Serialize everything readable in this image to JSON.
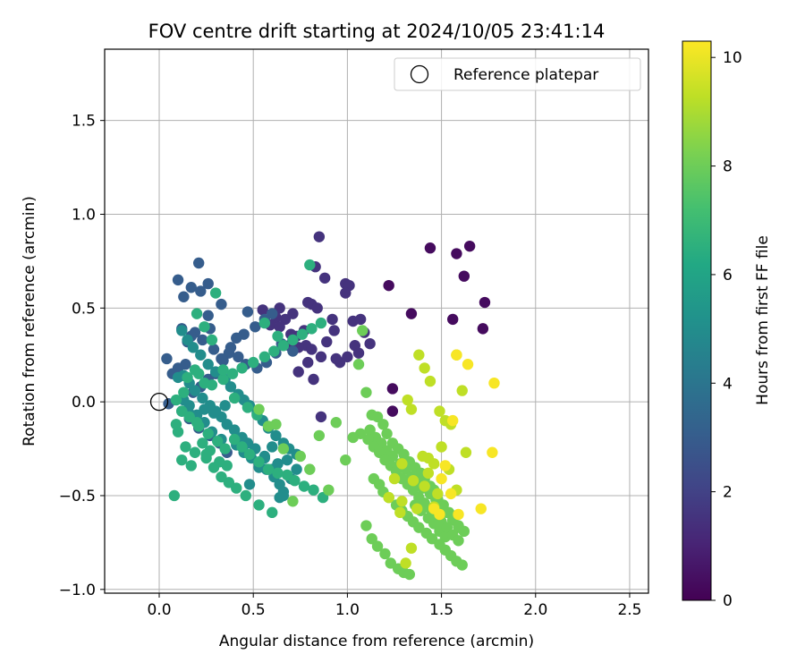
{
  "chart_data": {
    "type": "scatter",
    "title": "FOV centre drift starting at 2024/10/05 23:41:14",
    "xlabel": "Angular distance from reference (arcmin)",
    "ylabel": "Rotation from reference (arcmin)",
    "xlim": [
      -0.29,
      2.6
    ],
    "ylim": [
      -1.02,
      1.88
    ],
    "xticks": [
      0.0,
      0.5,
      1.0,
      1.5,
      2.0,
      2.5
    ],
    "xtick_labels": [
      "0.0",
      "0.5",
      "1.0",
      "1.5",
      "2.0",
      "2.5"
    ],
    "yticks": [
      -1.0,
      -0.5,
      0.0,
      0.5,
      1.0,
      1.5
    ],
    "ytick_labels": [
      "−1.0",
      "−0.5",
      "0.0",
      "0.5",
      "1.0",
      "1.5"
    ],
    "grid": true,
    "legend": {
      "placement": "top-right",
      "entries": [
        "Reference platepar"
      ]
    },
    "reference_point": {
      "x": 0.0,
      "y": 0.0,
      "marker": "open-circle"
    },
    "colorbar": {
      "label": "Hours from first FF file",
      "colormap": "viridis",
      "range": [
        0,
        10.3
      ],
      "ticks": [
        0,
        2,
        4,
        6,
        8,
        10
      ],
      "tick_labels": [
        "0",
        "2",
        "4",
        "6",
        "8",
        "10"
      ]
    },
    "series": [
      {
        "label_hours": 0.3,
        "x": [
          1.44,
          1.58,
          1.65,
          1.62,
          1.56,
          1.73,
          1.72,
          1.34,
          1.22,
          1.24,
          1.24
        ],
        "y": [
          0.82,
          0.79,
          0.83,
          0.67,
          0.44,
          0.53,
          0.39,
          0.47,
          0.62,
          0.07,
          -0.05
        ]
      },
      {
        "values_hours": 1.5,
        "x": [
          0.85,
          0.88,
          0.81,
          0.79,
          0.84,
          0.92,
          0.99,
          1.01,
          0.99,
          1.03,
          1.07,
          1.09,
          1.12,
          0.93,
          0.89,
          0.96,
          0.86,
          0.78,
          0.81,
          0.73,
          0.77,
          0.74,
          0.7,
          0.67,
          0.71,
          0.64,
          0.62,
          0.55,
          0.59,
          0.64,
          0.69,
          0.74,
          0.82,
          0.79,
          0.86,
          1.04,
          1.06,
          0.94,
          1.0,
          0.83
        ],
        "y": [
          0.88,
          0.66,
          0.52,
          0.53,
          0.5,
          0.44,
          0.63,
          0.62,
          0.58,
          0.43,
          0.44,
          0.37,
          0.31,
          0.38,
          0.32,
          0.21,
          0.24,
          0.3,
          0.28,
          0.35,
          0.38,
          0.29,
          0.36,
          0.44,
          0.47,
          0.5,
          0.45,
          0.49,
          0.41,
          0.4,
          0.3,
          0.16,
          0.12,
          0.21,
          -0.08,
          0.3,
          0.26,
          0.23,
          0.24,
          0.72
        ]
      },
      {
        "values_hours": 3.0,
        "x": [
          0.1,
          0.13,
          0.17,
          0.22,
          0.26,
          0.21,
          0.26,
          0.33,
          0.27,
          0.19,
          0.12,
          0.17,
          0.15,
          0.23,
          0.29,
          0.33,
          0.37,
          0.42,
          0.46,
          0.52,
          0.57,
          0.62,
          0.65,
          0.71,
          0.6,
          0.56,
          0.51,
          0.47,
          0.45,
          0.41,
          0.38,
          0.34,
          0.3,
          0.26,
          0.22,
          0.18,
          0.14,
          0.1,
          0.07,
          0.04,
          0.05,
          0.12,
          0.16,
          0.21,
          0.27,
          0.32,
          0.36
        ],
        "y": [
          0.65,
          0.56,
          0.61,
          0.59,
          0.63,
          0.74,
          0.46,
          0.52,
          0.39,
          0.37,
          0.39,
          0.35,
          0.32,
          0.33,
          0.28,
          0.23,
          0.26,
          0.24,
          0.2,
          0.18,
          0.21,
          0.26,
          0.31,
          0.27,
          0.47,
          0.44,
          0.4,
          0.48,
          0.36,
          0.34,
          0.29,
          0.22,
          0.15,
          0.12,
          0.08,
          0.05,
          0.2,
          0.18,
          0.15,
          0.23,
          -0.01,
          -0.05,
          -0.09,
          -0.14,
          -0.18,
          -0.22,
          -0.27
        ]
      },
      {
        "values_hours": 5.0,
        "x": [
          0.12,
          0.15,
          0.18,
          0.22,
          0.26,
          0.3,
          0.35,
          0.38,
          0.42,
          0.45,
          0.48,
          0.52,
          0.55,
          0.58,
          0.62,
          0.66,
          0.69,
          0.73,
          0.68,
          0.63,
          0.6,
          0.56,
          0.51,
          0.47,
          0.44,
          0.4,
          0.36,
          0.33,
          0.3,
          0.27,
          0.23,
          0.19,
          0.16,
          0.13,
          0.1,
          0.16,
          0.2,
          0.24,
          0.28,
          0.33,
          0.41,
          0.45,
          0.49,
          0.53,
          0.57,
          0.61,
          0.64,
          0.66,
          0.7,
          0.73,
          0.66,
          0.64,
          0.48,
          0.53,
          0.56,
          0.6,
          0.29,
          0.35,
          0.24,
          0.17,
          0.13
        ],
        "y": [
          0.38,
          0.33,
          0.29,
          0.25,
          0.2,
          0.16,
          0.12,
          0.08,
          0.04,
          0.01,
          -0.02,
          -0.06,
          -0.1,
          -0.14,
          -0.18,
          -0.22,
          -0.25,
          -0.28,
          -0.31,
          -0.33,
          -0.36,
          -0.29,
          -0.25,
          -0.22,
          -0.19,
          -0.15,
          -0.12,
          -0.08,
          -0.05,
          -0.02,
          0.02,
          0.06,
          0.1,
          0.14,
          0.13,
          -0.02,
          -0.07,
          -0.11,
          -0.16,
          -0.2,
          -0.23,
          -0.27,
          -0.3,
          -0.33,
          -0.36,
          -0.4,
          -0.44,
          -0.48,
          -0.41,
          -0.36,
          -0.5,
          -0.51,
          -0.44,
          -0.35,
          -0.3,
          -0.24,
          -0.06,
          -0.02,
          -0.04,
          -0.07,
          0.01
        ]
      },
      {
        "values_hours": 6.5,
        "x": [
          0.2,
          0.24,
          0.28,
          0.3,
          0.24,
          0.19,
          0.13,
          0.09,
          0.16,
          0.21,
          0.26,
          0.31,
          0.35,
          0.25,
          0.17,
          0.12,
          0.08,
          0.1,
          0.14,
          0.19,
          0.23,
          0.27,
          0.32,
          0.36,
          0.4,
          0.44,
          0.48,
          0.53,
          0.58,
          0.63,
          0.68,
          0.72,
          0.77,
          0.82,
          0.87,
          0.6,
          0.53,
          0.46,
          0.41,
          0.37,
          0.33,
          0.29,
          0.25,
          0.2,
          0.16,
          0.12,
          0.09,
          0.28,
          0.34,
          0.39,
          0.44,
          0.5,
          0.56,
          0.61,
          0.66,
          0.71,
          0.76,
          0.81,
          0.86,
          0.56,
          0.63,
          0.8,
          0.4,
          0.47,
          0.52,
          0.15,
          0.21,
          0.34
        ],
        "y": [
          0.47,
          0.4,
          0.33,
          0.58,
          0.1,
          0.17,
          0.05,
          0.01,
          -0.08,
          -0.13,
          -0.17,
          -0.21,
          -0.25,
          -0.3,
          -0.34,
          -0.31,
          -0.5,
          -0.16,
          -0.24,
          -0.27,
          -0.22,
          -0.26,
          -0.32,
          -0.34,
          -0.2,
          -0.24,
          -0.28,
          -0.32,
          -0.36,
          -0.38,
          -0.39,
          -0.42,
          -0.45,
          -0.47,
          -0.51,
          -0.59,
          -0.55,
          -0.5,
          -0.46,
          -0.43,
          -0.4,
          -0.35,
          -0.28,
          -0.11,
          -0.08,
          -0.05,
          -0.12,
          0.09,
          0.12,
          0.15,
          0.18,
          0.21,
          0.24,
          0.27,
          0.3,
          0.33,
          0.36,
          0.39,
          0.42,
          0.42,
          0.35,
          0.73,
          0.02,
          -0.03,
          -0.07,
          0.13,
          0.15,
          0.17
        ]
      },
      {
        "values_hours": 8.0,
        "x": [
          1.06,
          1.08,
          1.1,
          1.13,
          1.16,
          1.19,
          1.21,
          1.24,
          1.27,
          1.3,
          1.33,
          1.36,
          1.39,
          1.41,
          1.44,
          1.46,
          1.48,
          1.51,
          1.54,
          1.56,
          1.59,
          1.62,
          1.14,
          1.17,
          1.19,
          1.22,
          1.26,
          1.29,
          1.32,
          1.35,
          1.38,
          1.42,
          1.45,
          1.49,
          1.52,
          1.55,
          1.58,
          1.61,
          1.1,
          1.13,
          1.16,
          1.2,
          1.23,
          1.27,
          1.3,
          1.33,
          1.36,
          1.39,
          1.43,
          1.46,
          1.49,
          1.52,
          1.12,
          1.15,
          1.18,
          1.21,
          1.24,
          1.28,
          1.31,
          1.34,
          1.37,
          1.4,
          1.44,
          1.47,
          1.5,
          1.53,
          1.56,
          1.59,
          1.07,
          1.11,
          1.14,
          1.17,
          1.2,
          1.23,
          1.26,
          1.29,
          1.32,
          1.35,
          1.38,
          1.41,
          1.44,
          1.47,
          1.5,
          1.53,
          1.56,
          1.59,
          1.03,
          0.99,
          0.94,
          0.9,
          0.85,
          0.8,
          0.75,
          0.71,
          0.66,
          0.62,
          0.58,
          0.53
        ],
        "y": [
          0.2,
          0.38,
          0.05,
          -0.07,
          -0.08,
          -0.12,
          -0.17,
          -0.22,
          -0.25,
          -0.28,
          -0.32,
          -0.35,
          -0.38,
          -0.41,
          -0.45,
          -0.47,
          -0.52,
          -0.55,
          -0.59,
          -0.63,
          -0.66,
          -0.69,
          -0.41,
          -0.44,
          -0.48,
          -0.51,
          -0.55,
          -0.58,
          -0.61,
          -0.64,
          -0.67,
          -0.7,
          -0.73,
          -0.76,
          -0.79,
          -0.82,
          -0.85,
          -0.87,
          -0.66,
          -0.73,
          -0.77,
          -0.81,
          -0.86,
          -0.89,
          -0.91,
          -0.92,
          -0.55,
          -0.58,
          -0.62,
          -0.65,
          -0.69,
          -0.72,
          -0.15,
          -0.19,
          -0.22,
          -0.26,
          -0.29,
          -0.33,
          -0.36,
          -0.4,
          -0.43,
          -0.46,
          -0.49,
          -0.52,
          -0.56,
          -0.59,
          -0.63,
          -0.67,
          -0.17,
          -0.2,
          -0.24,
          -0.27,
          -0.31,
          -0.34,
          -0.37,
          -0.41,
          -0.44,
          -0.47,
          -0.51,
          -0.54,
          -0.57,
          -0.61,
          -0.64,
          -0.67,
          -0.71,
          -0.74,
          -0.19,
          -0.31,
          -0.11,
          -0.47,
          -0.18,
          -0.36,
          -0.29,
          -0.53,
          -0.25,
          -0.12,
          -0.13,
          -0.04
        ]
      },
      {
        "values_hours": 9.3,
        "x": [
          1.32,
          1.34,
          1.38,
          1.41,
          1.44,
          1.49,
          1.52,
          1.55,
          1.58,
          1.61,
          1.63,
          1.5,
          1.46,
          1.43,
          1.4,
          1.37,
          1.34,
          1.31,
          1.28,
          1.25,
          1.29,
          1.22,
          1.41,
          1.46,
          1.35,
          1.58,
          1.29,
          1.43,
          1.54,
          1.48
        ],
        "y": [
          0.01,
          -0.04,
          0.25,
          0.18,
          0.11,
          -0.05,
          -0.1,
          -0.12,
          0.25,
          0.06,
          -0.27,
          -0.24,
          -0.33,
          -0.38,
          -0.29,
          -0.57,
          -0.78,
          -0.86,
          -0.59,
          -0.41,
          -0.53,
          -0.51,
          -0.45,
          -0.56,
          -0.42,
          -0.47,
          -0.33,
          -0.3,
          -0.36,
          -0.49
        ]
      },
      {
        "values_hours": 10.2,
        "x": [
          1.58,
          1.64,
          1.78,
          1.77,
          1.71,
          1.56,
          1.59,
          1.52,
          1.55,
          1.49,
          1.46,
          1.5
        ],
        "y": [
          0.25,
          0.2,
          0.1,
          -0.27,
          -0.57,
          -0.1,
          -0.6,
          -0.34,
          -0.49,
          -0.6,
          -0.57,
          -0.41
        ]
      }
    ]
  }
}
